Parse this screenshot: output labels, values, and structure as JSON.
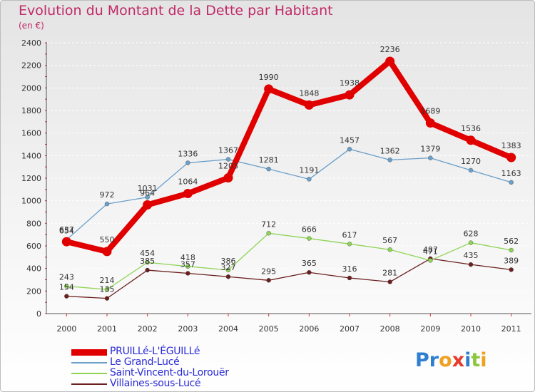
{
  "title": "Evolution du Montant de la Dette par Habitant",
  "subtitle": "(en €)",
  "logo": {
    "letters": [
      {
        "char": "P",
        "color": "#2f7fd0"
      },
      {
        "char": "r",
        "color": "#2f7fd0"
      },
      {
        "char": "o",
        "color": "#f0a020"
      },
      {
        "char": "x",
        "color": "#e83a2a"
      },
      {
        "char": "i",
        "color": "#2f7fd0"
      },
      {
        "char": "t",
        "color": "#8cc63f"
      },
      {
        "char": "i",
        "color": "#f0a020"
      }
    ]
  },
  "chart_data": {
    "type": "line",
    "x": [
      "2000",
      "2001",
      "2002",
      "2003",
      "2004",
      "2005",
      "2006",
      "2007",
      "2008",
      "2009",
      "2010",
      "2011"
    ],
    "ylim": [
      0,
      2400
    ],
    "yticks": [
      0,
      200,
      400,
      600,
      800,
      1000,
      1200,
      1400,
      1600,
      1800,
      2000,
      2200,
      2400
    ],
    "grid": true,
    "legend_placement": "bottom-left",
    "series": [
      {
        "name": "PRUILLé-L'ÉGUILLé",
        "color": "#e00000",
        "values": [
          637,
          550,
          964,
          1064,
          1203,
          1990,
          1848,
          1938,
          2236,
          1689,
          1536,
          1383
        ]
      },
      {
        "name": "Le Grand-Lucé",
        "color": "#6a9fca",
        "values": [
          654,
          972,
          1031,
          1336,
          1367,
          1281,
          1191,
          1457,
          1362,
          1379,
          1270,
          1163
        ]
      },
      {
        "name": "Saint-Vincent-du-Lorouër",
        "color": "#8fd456",
        "values": [
          243,
          214,
          454,
          418,
          386,
          712,
          666,
          617,
          567,
          471,
          628,
          562
        ]
      },
      {
        "name": "Villaines-sous-Lucé",
        "color": "#6b1f1f",
        "values": [
          154,
          135,
          385,
          357,
          327,
          295,
          365,
          316,
          281,
          487,
          435,
          389
        ]
      }
    ]
  }
}
